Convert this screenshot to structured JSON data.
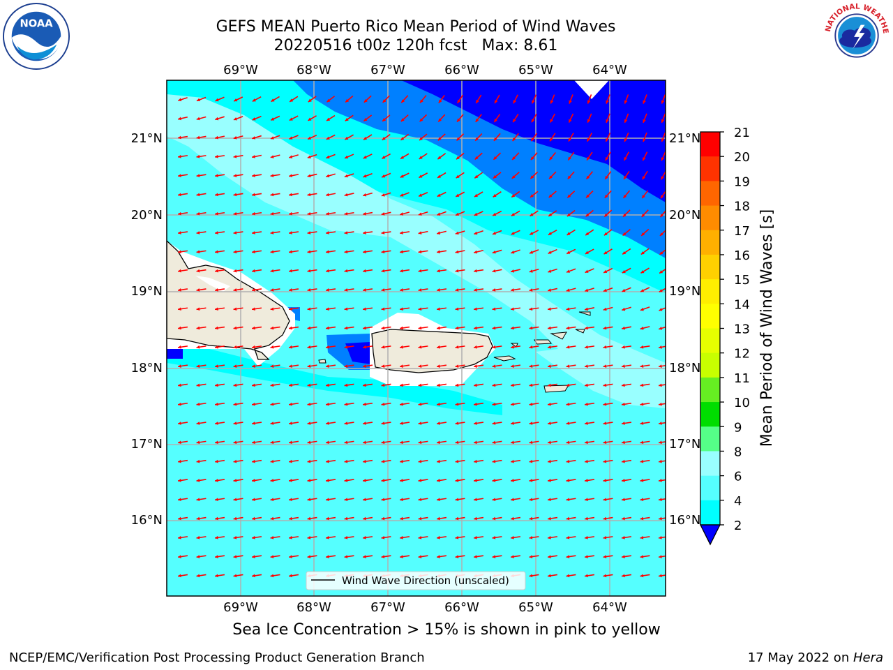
{
  "header": {
    "title": "GEFS MEAN Puerto Rico Mean Period of Wind Waves",
    "subtitle": "20220516 t00z 120h fcst   Max: 8.61"
  },
  "map": {
    "lon_labels": [
      "69°W",
      "68°W",
      "67°W",
      "66°W",
      "65°W",
      "64°W"
    ],
    "lat_labels": [
      "21°N",
      "20°N",
      "19°N",
      "18°N",
      "17°N",
      "16°N"
    ],
    "legend_label": "Wind Wave Direction (unscaled)",
    "arrow_color": "#ff0000",
    "land_color": "#efebdc"
  },
  "colorbar": {
    "label": "Mean Period of Wind Waves [s]",
    "ticks": [
      "21",
      "20",
      "19",
      "18",
      "17",
      "16",
      "15",
      "14",
      "13",
      "12",
      "11",
      "10",
      "9",
      "8",
      "6",
      "4",
      "2"
    ],
    "colors": [
      "#ff0000",
      "#ff2600",
      "#ff4d00",
      "#ff8000",
      "#ffa600",
      "#ffbf00",
      "#ffe600",
      "#ffff00",
      "#e6ff00",
      "#ccff00",
      "#99ee00",
      "#33dd00",
      "#00ff00",
      "#55ff99",
      "#99ffff",
      "#55ffff",
      "#00ffff",
      "#0080ff",
      "#0000ff"
    ],
    "under_color": "#0000ff"
  },
  "notes": {
    "sea_ice": "Sea Ice Concentration > 15% is shown in pink to yellow"
  },
  "footer": {
    "left": "NCEP/EMC/Verification Post Processing Product Generation Branch",
    "date": "17 May 2022 on ",
    "machine": "Hera"
  },
  "logos": {
    "noaa_text": "NOAA",
    "nws_text": "NATIONAL WEATHER SERVICE"
  }
}
